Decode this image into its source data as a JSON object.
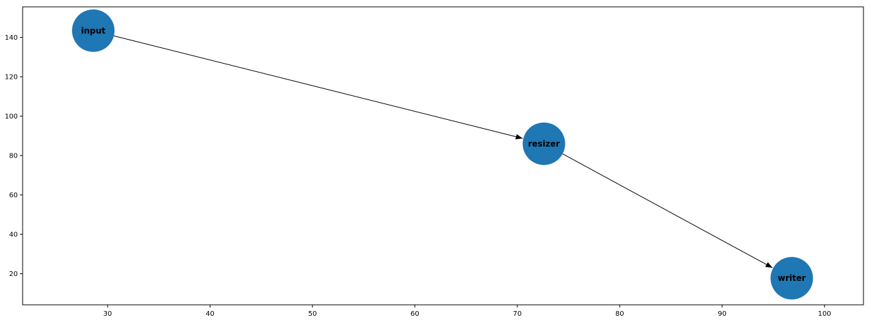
{
  "chart_data": {
    "type": "scatter",
    "subtype": "directed-graph",
    "title": "",
    "xlabel": "",
    "ylabel": "",
    "xlim": [
      21.7,
      103.8
    ],
    "ylim": [
      4.2,
      155.5
    ],
    "grid": false,
    "legend": "none",
    "x_ticks": [
      "30",
      "40",
      "50",
      "60",
      "70",
      "80",
      "90",
      "100"
    ],
    "y_ticks": [
      "20",
      "40",
      "60",
      "80",
      "100",
      "120",
      "140"
    ],
    "node_color": "#1f77b4",
    "edge_color": "#000000",
    "nodes": [
      {
        "label": "input",
        "x": 28.6,
        "y": 143.4
      },
      {
        "label": "resizer",
        "x": 72.6,
        "y": 86.0
      },
      {
        "label": "writer",
        "x": 96.8,
        "y": 17.7
      }
    ],
    "edges": [
      {
        "from": "input",
        "to": "resizer"
      },
      {
        "from": "resizer",
        "to": "writer"
      }
    ]
  }
}
